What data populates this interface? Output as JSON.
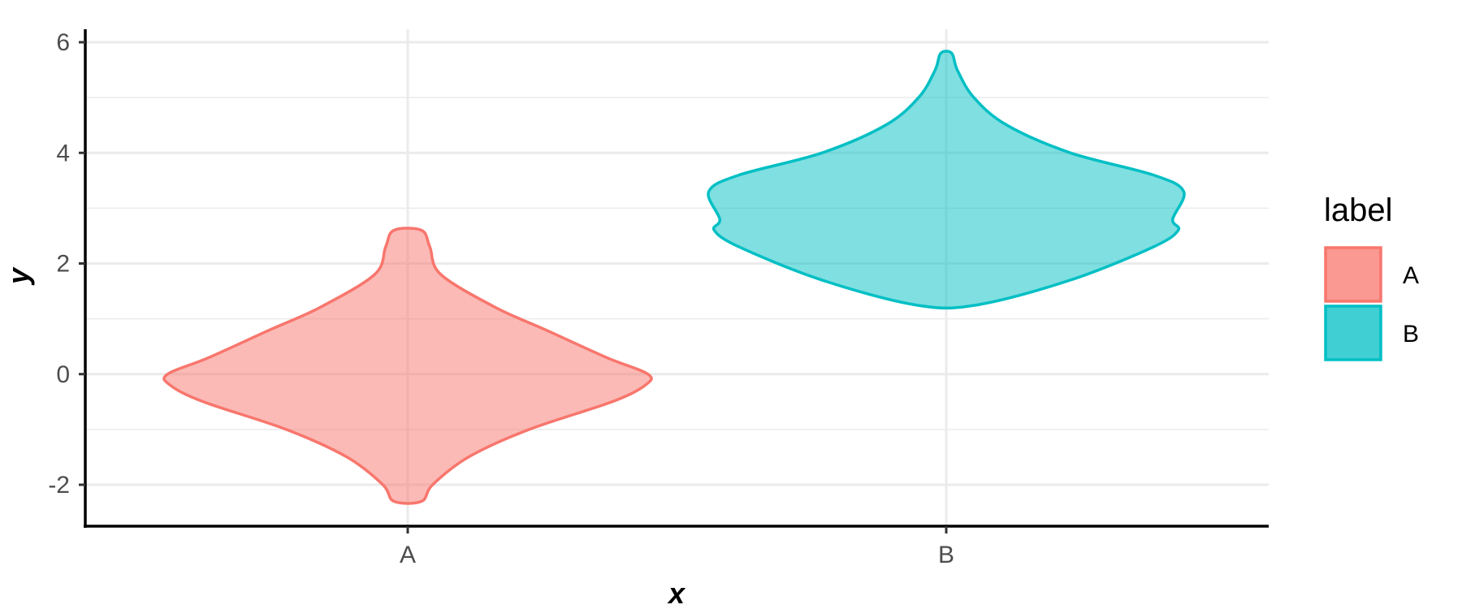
{
  "chart_data": {
    "type": "violin",
    "title": "",
    "xlabel": "x",
    "ylabel": "y",
    "categories": [
      "A",
      "B"
    ],
    "ylim": [
      -2.7,
      6.2
    ],
    "y_ticks": [
      -2,
      0,
      2,
      4,
      6
    ],
    "y_tick_labels": [
      "-2",
      "0",
      "2",
      "4",
      "6"
    ],
    "grid": true,
    "legend": {
      "title": "label",
      "position": "right",
      "entries": [
        "A",
        "B"
      ]
    },
    "colors": {
      "A": "#F8766D",
      "B": "#00BFC4"
    },
    "series": [
      {
        "name": "A",
        "category": "A",
        "y_min": -2.3,
        "y_max": 2.6,
        "density_profile": [
          {
            "y": -2.3,
            "half_width": 0.05
          },
          {
            "y": -2.0,
            "half_width": 0.09
          },
          {
            "y": -1.5,
            "half_width": 0.22
          },
          {
            "y": -1.0,
            "half_width": 0.44
          },
          {
            "y": -0.5,
            "half_width": 0.74
          },
          {
            "y": -0.2,
            "half_width": 0.86
          },
          {
            "y": 0.0,
            "half_width": 0.87
          },
          {
            "y": 0.3,
            "half_width": 0.72
          },
          {
            "y": 0.8,
            "half_width": 0.5
          },
          {
            "y": 1.2,
            "half_width": 0.32
          },
          {
            "y": 1.8,
            "half_width": 0.12
          },
          {
            "y": 2.3,
            "half_width": 0.08
          },
          {
            "y": 2.6,
            "half_width": 0.05
          }
        ]
      },
      {
        "name": "B",
        "category": "B",
        "y_min": 1.25,
        "y_max": 5.8,
        "density_profile": [
          {
            "y": 1.25,
            "half_width": 0.11
          },
          {
            "y": 1.7,
            "half_width": 0.45
          },
          {
            "y": 2.3,
            "half_width": 0.75
          },
          {
            "y": 2.6,
            "half_width": 0.84
          },
          {
            "y": 2.8,
            "half_width": 0.82
          },
          {
            "y": 3.3,
            "half_width": 0.86
          },
          {
            "y": 3.6,
            "half_width": 0.75
          },
          {
            "y": 4.0,
            "half_width": 0.45
          },
          {
            "y": 4.5,
            "half_width": 0.22
          },
          {
            "y": 5.0,
            "half_width": 0.1
          },
          {
            "y": 5.5,
            "half_width": 0.04
          },
          {
            "y": 5.8,
            "half_width": 0.02
          }
        ]
      }
    ]
  }
}
